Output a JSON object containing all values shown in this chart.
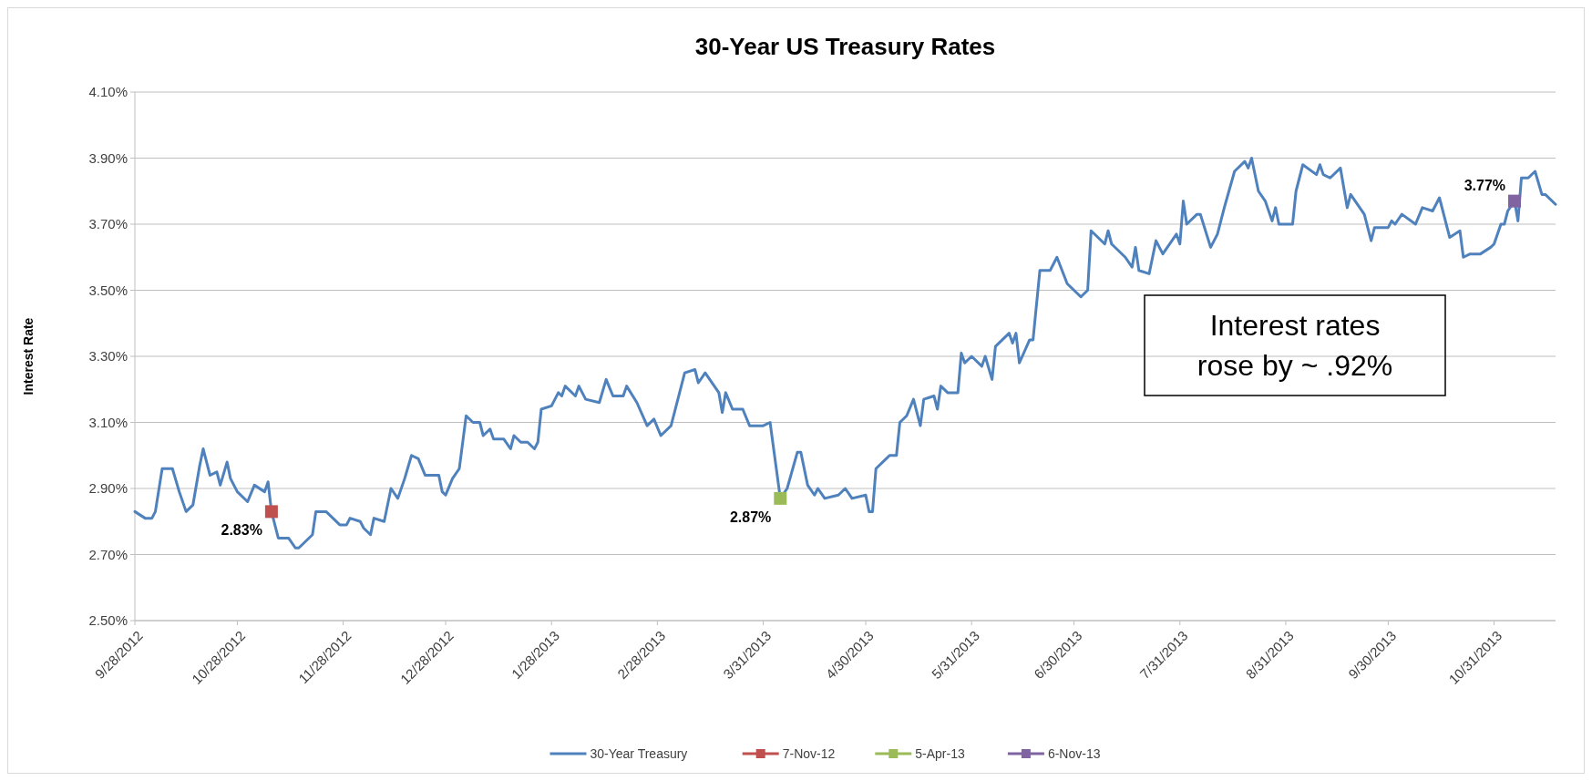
{
  "chart_data": {
    "type": "line",
    "title": "30-Year US Treasury Rates",
    "ylabel": "Interest Rate",
    "xlim": [
      "2012-09-28",
      "2013-11-18"
    ],
    "xticks": [
      {
        "value": "2012-09-28",
        "label": "9/28/2012"
      },
      {
        "value": "2012-10-28",
        "label": "10/28/2012"
      },
      {
        "value": "2012-11-28",
        "label": "11/28/2012"
      },
      {
        "value": "2012-12-28",
        "label": "12/28/2012"
      },
      {
        "value": "2013-01-28",
        "label": "1/28/2013"
      },
      {
        "value": "2013-02-28",
        "label": "2/28/2013"
      },
      {
        "value": "2013-03-31",
        "label": "3/31/2013"
      },
      {
        "value": "2013-04-30",
        "label": "4/30/2013"
      },
      {
        "value": "2013-05-31",
        "label": "5/31/2013"
      },
      {
        "value": "2013-06-30",
        "label": "6/30/2013"
      },
      {
        "value": "2013-07-31",
        "label": "7/31/2013"
      },
      {
        "value": "2013-08-31",
        "label": "8/31/2013"
      },
      {
        "value": "2013-09-30",
        "label": "9/30/2013"
      },
      {
        "value": "2013-10-31",
        "label": "10/31/2013"
      }
    ],
    "ylim": [
      2.5,
      4.1
    ],
    "yticks": [
      {
        "value": 2.5,
        "label": "2.50%"
      },
      {
        "value": 2.7,
        "label": "2.70%"
      },
      {
        "value": 2.9,
        "label": "2.90%"
      },
      {
        "value": 3.1,
        "label": "3.10%"
      },
      {
        "value": 3.3,
        "label": "3.30%"
      },
      {
        "value": 3.5,
        "label": "3.50%"
      },
      {
        "value": 3.7,
        "label": "3.70%"
      },
      {
        "value": 3.9,
        "label": "3.90%"
      },
      {
        "value": 4.1,
        "label": "4.10%"
      }
    ],
    "grid": "y",
    "legend": "bottom",
    "line_style": "solid",
    "annotations": [
      "Interest rates rose by ~ .92%"
    ],
    "series": [
      {
        "name": "30-Year Treasury",
        "color": "#4f81bd",
        "marker": "none",
        "x": [
          "2012-09-28",
          "2012-10-01",
          "2012-10-03",
          "2012-10-04",
          "2012-10-06",
          "2012-10-09",
          "2012-10-11",
          "2012-10-13",
          "2012-10-15",
          "2012-10-17",
          "2012-10-18",
          "2012-10-20",
          "2012-10-22",
          "2012-10-23",
          "2012-10-25",
          "2012-10-26",
          "2012-10-28",
          "2012-10-31",
          "2012-11-02",
          "2012-11-05",
          "2012-11-06",
          "2012-11-07",
          "2012-11-09",
          "2012-11-12",
          "2012-11-14",
          "2012-11-15",
          "2012-11-19",
          "2012-11-20",
          "2012-11-23",
          "2012-11-27",
          "2012-11-29",
          "2012-11-30",
          "2012-12-03",
          "2012-12-04",
          "2012-12-06",
          "2012-12-07",
          "2012-12-10",
          "2012-12-12",
          "2012-12-14",
          "2012-12-16",
          "2012-12-18",
          "2012-12-20",
          "2012-12-22",
          "2012-12-26",
          "2012-12-27",
          "2012-12-28",
          "2012-12-30",
          "2013-01-01",
          "2013-01-03",
          "2013-01-05",
          "2013-01-07",
          "2013-01-08",
          "2013-01-10",
          "2013-01-11",
          "2013-01-14",
          "2013-01-16",
          "2013-01-17",
          "2013-01-19",
          "2013-01-21",
          "2013-01-23",
          "2013-01-24",
          "2013-01-25",
          "2013-01-28",
          "2013-01-30",
          "2013-01-31",
          "2013-02-01",
          "2013-02-04",
          "2013-02-05",
          "2013-02-07",
          "2013-02-11",
          "2013-02-13",
          "2013-02-15",
          "2013-02-18",
          "2013-02-19",
          "2013-02-22",
          "2013-02-25",
          "2013-02-27",
          "2013-03-01",
          "2013-03-04",
          "2013-03-08",
          "2013-03-11",
          "2013-03-12",
          "2013-03-14",
          "2013-03-18",
          "2013-03-19",
          "2013-03-20",
          "2013-03-22",
          "2013-03-25",
          "2013-03-27",
          "2013-03-31",
          "2013-04-02",
          "2013-04-05",
          "2013-04-07",
          "2013-04-10",
          "2013-04-11",
          "2013-04-13",
          "2013-04-15",
          "2013-04-16",
          "2013-04-18",
          "2013-04-22",
          "2013-04-24",
          "2013-04-26",
          "2013-04-30",
          "2013-05-01",
          "2013-05-02",
          "2013-05-03",
          "2013-05-06",
          "2013-05-07",
          "2013-05-09",
          "2013-05-10",
          "2013-05-12",
          "2013-05-14",
          "2013-05-16",
          "2013-05-17",
          "2013-05-20",
          "2013-05-21",
          "2013-05-22",
          "2013-05-24",
          "2013-05-27",
          "2013-05-28",
          "2013-05-29",
          "2013-05-31",
          "2013-06-03",
          "2013-06-04",
          "2013-06-06",
          "2013-06-07",
          "2013-06-11",
          "2013-06-12",
          "2013-06-13",
          "2013-06-14",
          "2013-06-17",
          "2013-06-18",
          "2013-06-20",
          "2013-06-23",
          "2013-06-25",
          "2013-06-28",
          "2013-07-02",
          "2013-07-04",
          "2013-07-05",
          "2013-07-09",
          "2013-07-10",
          "2013-07-11",
          "2013-07-15",
          "2013-07-17",
          "2013-07-18",
          "2013-07-19",
          "2013-07-22",
          "2013-07-24",
          "2013-07-26",
          "2013-07-30",
          "2013-07-31",
          "2013-08-01",
          "2013-08-02",
          "2013-08-05",
          "2013-08-06",
          "2013-08-09",
          "2013-08-11",
          "2013-08-13",
          "2013-08-16",
          "2013-08-19",
          "2013-08-20",
          "2013-08-21",
          "2013-08-23",
          "2013-08-25",
          "2013-08-27",
          "2013-08-28",
          "2013-08-29",
          "2013-09-02",
          "2013-09-03",
          "2013-09-05",
          "2013-09-09",
          "2013-09-10",
          "2013-09-11",
          "2013-09-13",
          "2013-09-16",
          "2013-09-18",
          "2013-09-19",
          "2013-09-23",
          "2013-09-25",
          "2013-09-26",
          "2013-09-30",
          "2013-10-01",
          "2013-10-02",
          "2013-10-04",
          "2013-10-08",
          "2013-10-10",
          "2013-10-13",
          "2013-10-15",
          "2013-10-18",
          "2013-10-21",
          "2013-10-22",
          "2013-10-24",
          "2013-10-26",
          "2013-10-27",
          "2013-10-30",
          "2013-10-31",
          "2013-11-02",
          "2013-11-03",
          "2013-11-04",
          "2013-11-06",
          "2013-11-07",
          "2013-11-08",
          "2013-11-10",
          "2013-11-12",
          "2013-11-14",
          "2013-11-15",
          "2013-11-18"
        ],
        "values": [
          2.83,
          2.81,
          2.81,
          2.83,
          2.96,
          2.96,
          2.89,
          2.83,
          2.85,
          2.97,
          3.02,
          2.94,
          2.95,
          2.91,
          2.98,
          2.93,
          2.89,
          2.86,
          2.91,
          2.89,
          2.92,
          2.83,
          2.75,
          2.75,
          2.72,
          2.72,
          2.76,
          2.83,
          2.83,
          2.79,
          2.79,
          2.81,
          2.8,
          2.78,
          2.76,
          2.81,
          2.8,
          2.9,
          2.87,
          2.93,
          3.0,
          2.99,
          2.94,
          2.94,
          2.89,
          2.88,
          2.93,
          2.96,
          3.12,
          3.1,
          3.1,
          3.06,
          3.08,
          3.05,
          3.05,
          3.02,
          3.06,
          3.04,
          3.04,
          3.02,
          3.04,
          3.14,
          3.15,
          3.19,
          3.18,
          3.21,
          3.18,
          3.21,
          3.17,
          3.16,
          3.23,
          3.18,
          3.18,
          3.21,
          3.16,
          3.09,
          3.11,
          3.06,
          3.09,
          3.25,
          3.26,
          3.22,
          3.25,
          3.19,
          3.13,
          3.19,
          3.14,
          3.14,
          3.09,
          3.09,
          3.1,
          2.87,
          2.9,
          3.01,
          3.01,
          2.91,
          2.88,
          2.9,
          2.87,
          2.88,
          2.9,
          2.87,
          2.88,
          2.83,
          2.83,
          2.96,
          2.99,
          3.0,
          3.0,
          3.1,
          3.12,
          3.17,
          3.09,
          3.17,
          3.18,
          3.14,
          3.21,
          3.19,
          3.19,
          3.31,
          3.28,
          3.3,
          3.27,
          3.3,
          3.23,
          3.33,
          3.37,
          3.34,
          3.37,
          3.28,
          3.35,
          3.35,
          3.56,
          3.56,
          3.6,
          3.52,
          3.48,
          3.5,
          3.68,
          3.64,
          3.68,
          3.64,
          3.6,
          3.57,
          3.63,
          3.56,
          3.55,
          3.65,
          3.61,
          3.67,
          3.64,
          3.77,
          3.7,
          3.73,
          3.73,
          3.63,
          3.67,
          3.75,
          3.86,
          3.89,
          3.87,
          3.9,
          3.8,
          3.77,
          3.71,
          3.75,
          3.7,
          3.7,
          3.8,
          3.88,
          3.85,
          3.88,
          3.85,
          3.84,
          3.87,
          3.75,
          3.79,
          3.73,
          3.65,
          3.69,
          3.69,
          3.71,
          3.7,
          3.73,
          3.7,
          3.75,
          3.74,
          3.78,
          3.66,
          3.68,
          3.6,
          3.61,
          3.61,
          3.61,
          3.63,
          3.64,
          3.7,
          3.7,
          3.74,
          3.77,
          3.71,
          3.84,
          3.84,
          3.86,
          3.79,
          3.79,
          3.76
        ]
      },
      {
        "name": "7-Nov-12",
        "color": "#c0504d",
        "marker": "square",
        "x": [
          "2012-11-07"
        ],
        "values": [
          2.83
        ],
        "value_labels": [
          "2.83%"
        ]
      },
      {
        "name": "5-Apr-13",
        "color": "#9bbb59",
        "marker": "square",
        "x": [
          "2013-04-05"
        ],
        "values": [
          2.87
        ],
        "value_labels": [
          "2.87%"
        ]
      },
      {
        "name": "6-Nov-13",
        "color": "#8064a2",
        "marker": "square",
        "x": [
          "2013-11-06"
        ],
        "values": [
          3.77
        ],
        "value_labels": [
          "3.77%"
        ]
      }
    ]
  }
}
